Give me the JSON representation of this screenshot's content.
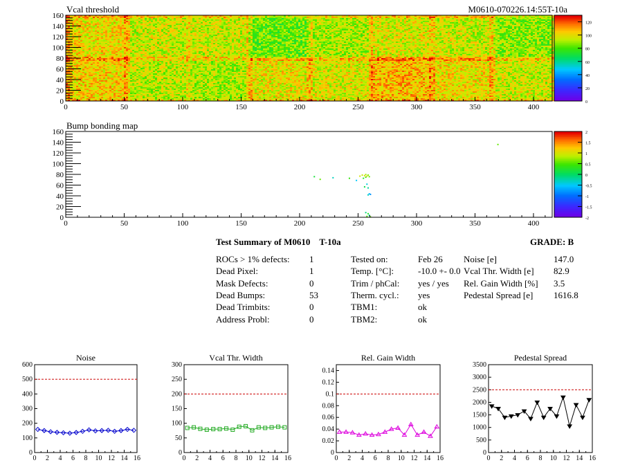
{
  "chart_data": [
    {
      "type": "heatmap",
      "title": "Vcal threshold",
      "id_label": "M0610-070226.14:55T-10a",
      "xlim": [
        0,
        416
      ],
      "ylim": [
        0,
        160
      ],
      "xticks": [
        0,
        50,
        100,
        150,
        200,
        250,
        300,
        350,
        400
      ],
      "yticks": [
        0,
        20,
        40,
        60,
        80,
        100,
        120,
        140,
        160
      ],
      "zlim": [
        0,
        130
      ],
      "zticks": [
        0,
        20,
        40,
        60,
        80,
        100,
        120
      ],
      "roc_columns": 8,
      "roc_rows": 2,
      "roc_means": [
        [
          102,
          96,
          96,
          84,
          92,
          98,
          96,
          88
        ],
        [
          104,
          94,
          92,
          100,
          98,
          108,
          102,
          96
        ]
      ]
    },
    {
      "type": "scatter",
      "title": "Bump bonding map",
      "xlim": [
        0,
        416
      ],
      "ylim": [
        0,
        160
      ],
      "xticks": [
        0,
        50,
        100,
        150,
        200,
        250,
        300,
        350,
        400
      ],
      "yticks": [
        0,
        20,
        40,
        60,
        80,
        100,
        120,
        140,
        160
      ],
      "zlim": [
        -2,
        2
      ],
      "zticks": [
        "-2",
        "-1.5",
        "-1",
        "-0.5",
        "0",
        "0.5",
        "1",
        "1.5",
        "2"
      ],
      "points": [
        [
          212,
          77,
          0.2
        ],
        [
          217,
          72,
          0.6
        ],
        [
          228,
          75,
          -0.3
        ],
        [
          242,
          74,
          0.4
        ],
        [
          248,
          70,
          -0.5
        ],
        [
          251,
          78,
          1.0
        ],
        [
          253,
          80,
          0.9
        ],
        [
          255,
          79,
          1.1
        ],
        [
          256,
          81,
          0.8
        ],
        [
          257,
          78,
          1.0
        ],
        [
          258,
          80,
          0.7
        ],
        [
          256,
          76,
          0.5
        ],
        [
          259,
          77,
          0.6
        ],
        [
          254,
          74,
          0.3
        ],
        [
          257,
          63,
          -0.4
        ],
        [
          258,
          56,
          -0.2
        ],
        [
          255,
          58,
          0.1
        ],
        [
          259,
          45,
          -0.6
        ],
        [
          258,
          43,
          -0.3
        ],
        [
          260,
          44,
          -0.8
        ],
        [
          256,
          10,
          -0.1
        ],
        [
          258,
          8,
          0.3
        ],
        [
          259,
          5,
          -0.2
        ],
        [
          257,
          3,
          0.5
        ],
        [
          260,
          2,
          0.6
        ],
        [
          369,
          137,
          0.6
        ]
      ]
    },
    {
      "type": "line",
      "title": "Noise",
      "x": [
        0,
        1,
        2,
        3,
        4,
        5,
        6,
        7,
        8,
        9,
        10,
        11,
        12,
        13,
        14,
        15
      ],
      "values": [
        158,
        150,
        142,
        138,
        135,
        132,
        137,
        145,
        155,
        148,
        150,
        152,
        145,
        150,
        158,
        152
      ],
      "threshold": 500,
      "xlim": [
        0,
        16
      ],
      "ylim": [
        0,
        600
      ],
      "xticks": [
        0,
        2,
        4,
        6,
        8,
        10,
        12,
        14,
        16
      ],
      "yticks": [
        0,
        100,
        200,
        300,
        400,
        500,
        600
      ],
      "color": "#0000cc",
      "marker": "diamond"
    },
    {
      "type": "line",
      "title": "Vcal Thr. Width",
      "x": [
        0,
        1,
        2,
        3,
        4,
        5,
        6,
        7,
        8,
        9,
        10,
        11,
        12,
        13,
        14,
        15
      ],
      "values": [
        84,
        86,
        81,
        78,
        80,
        80,
        82,
        78,
        88,
        90,
        76,
        86,
        84,
        86,
        88,
        86
      ],
      "threshold": 200,
      "xlim": [
        0,
        16
      ],
      "ylim": [
        0,
        300
      ],
      "xticks": [
        0,
        2,
        4,
        6,
        8,
        10,
        12,
        14,
        16
      ],
      "yticks": [
        0,
        50,
        100,
        150,
        200,
        250,
        300
      ],
      "color": "#22aa22",
      "marker": "square"
    },
    {
      "type": "line",
      "title": "Rel. Gain Width",
      "x": [
        0,
        1,
        2,
        3,
        4,
        5,
        6,
        7,
        8,
        9,
        10,
        11,
        12,
        13,
        14,
        15
      ],
      "values": [
        0.035,
        0.035,
        0.034,
        0.03,
        0.032,
        0.03,
        0.031,
        0.035,
        0.04,
        0.042,
        0.03,
        0.048,
        0.03,
        0.035,
        0.028,
        0.044
      ],
      "threshold": 0.1,
      "xlim": [
        0,
        16
      ],
      "ylim": [
        0,
        0.15
      ],
      "xticks": [
        0,
        2,
        4,
        6,
        8,
        10,
        12,
        14,
        16
      ],
      "yticks": [
        0,
        0.02,
        0.04,
        0.06,
        0.08,
        0.1,
        0.12,
        0.14
      ],
      "ytick_labels": [
        "0",
        "0.02",
        "0.04",
        "0.06",
        "0.08",
        "0.1",
        "0.12",
        "0.14"
      ],
      "color": "#dd00dd",
      "marker": "triangle"
    },
    {
      "type": "line",
      "title": "Pedestal Spread",
      "x": [
        0,
        1,
        2,
        3,
        4,
        5,
        6,
        7,
        8,
        9,
        10,
        11,
        12,
        13,
        14,
        15
      ],
      "values": [
        1850,
        1750,
        1400,
        1450,
        1500,
        1650,
        1350,
        2000,
        1400,
        1750,
        1450,
        2200,
        1050,
        1900,
        1400,
        2100
      ],
      "threshold": 2500,
      "xlim": [
        0,
        16
      ],
      "ylim": [
        0,
        3500
      ],
      "xticks": [
        0,
        2,
        4,
        6,
        8,
        10,
        12,
        14,
        16
      ],
      "yticks": [
        0,
        500,
        1000,
        1500,
        2000,
        2500,
        3000,
        3500
      ],
      "color": "#000000",
      "marker": "triangle-down"
    }
  ],
  "summary": {
    "title": "Test Summary of M0610",
    "title_suffix": "T-10a",
    "grade": "GRADE:  B",
    "col1": [
      {
        "label": "ROCs > 1% defects:",
        "value": "1"
      },
      {
        "label": "Dead Pixel:",
        "value": "1"
      },
      {
        "label": "Mask Defects:",
        "value": "0"
      },
      {
        "label": "Dead Bumps:",
        "value": "53"
      },
      {
        "label": "Dead Trimbits:",
        "value": "0"
      },
      {
        "label": "Address Probl:",
        "value": "0"
      }
    ],
    "col2": [
      {
        "label": "Tested on:",
        "value": "Feb 26"
      },
      {
        "label": "Temp. [°C]:",
        "value": "-10.0 +- 0.0"
      },
      {
        "label": "Trim / phCal:",
        "value": "yes / yes"
      },
      {
        "label": "Therm. cycl.:",
        "value": "yes"
      },
      {
        "label": "TBM1:",
        "value": "ok"
      },
      {
        "label": "TBM2:",
        "value": "ok"
      }
    ],
    "col3": [
      {
        "label": "Noise [e]",
        "value": "147.0"
      },
      {
        "label": "Vcal Thr. Width [e]",
        "value": "82.9"
      },
      {
        "label": "Rel. Gain Width [%]",
        "value": "3.5"
      },
      {
        "label": "Pedestal Spread [e]",
        "value": "1616.8"
      }
    ]
  }
}
